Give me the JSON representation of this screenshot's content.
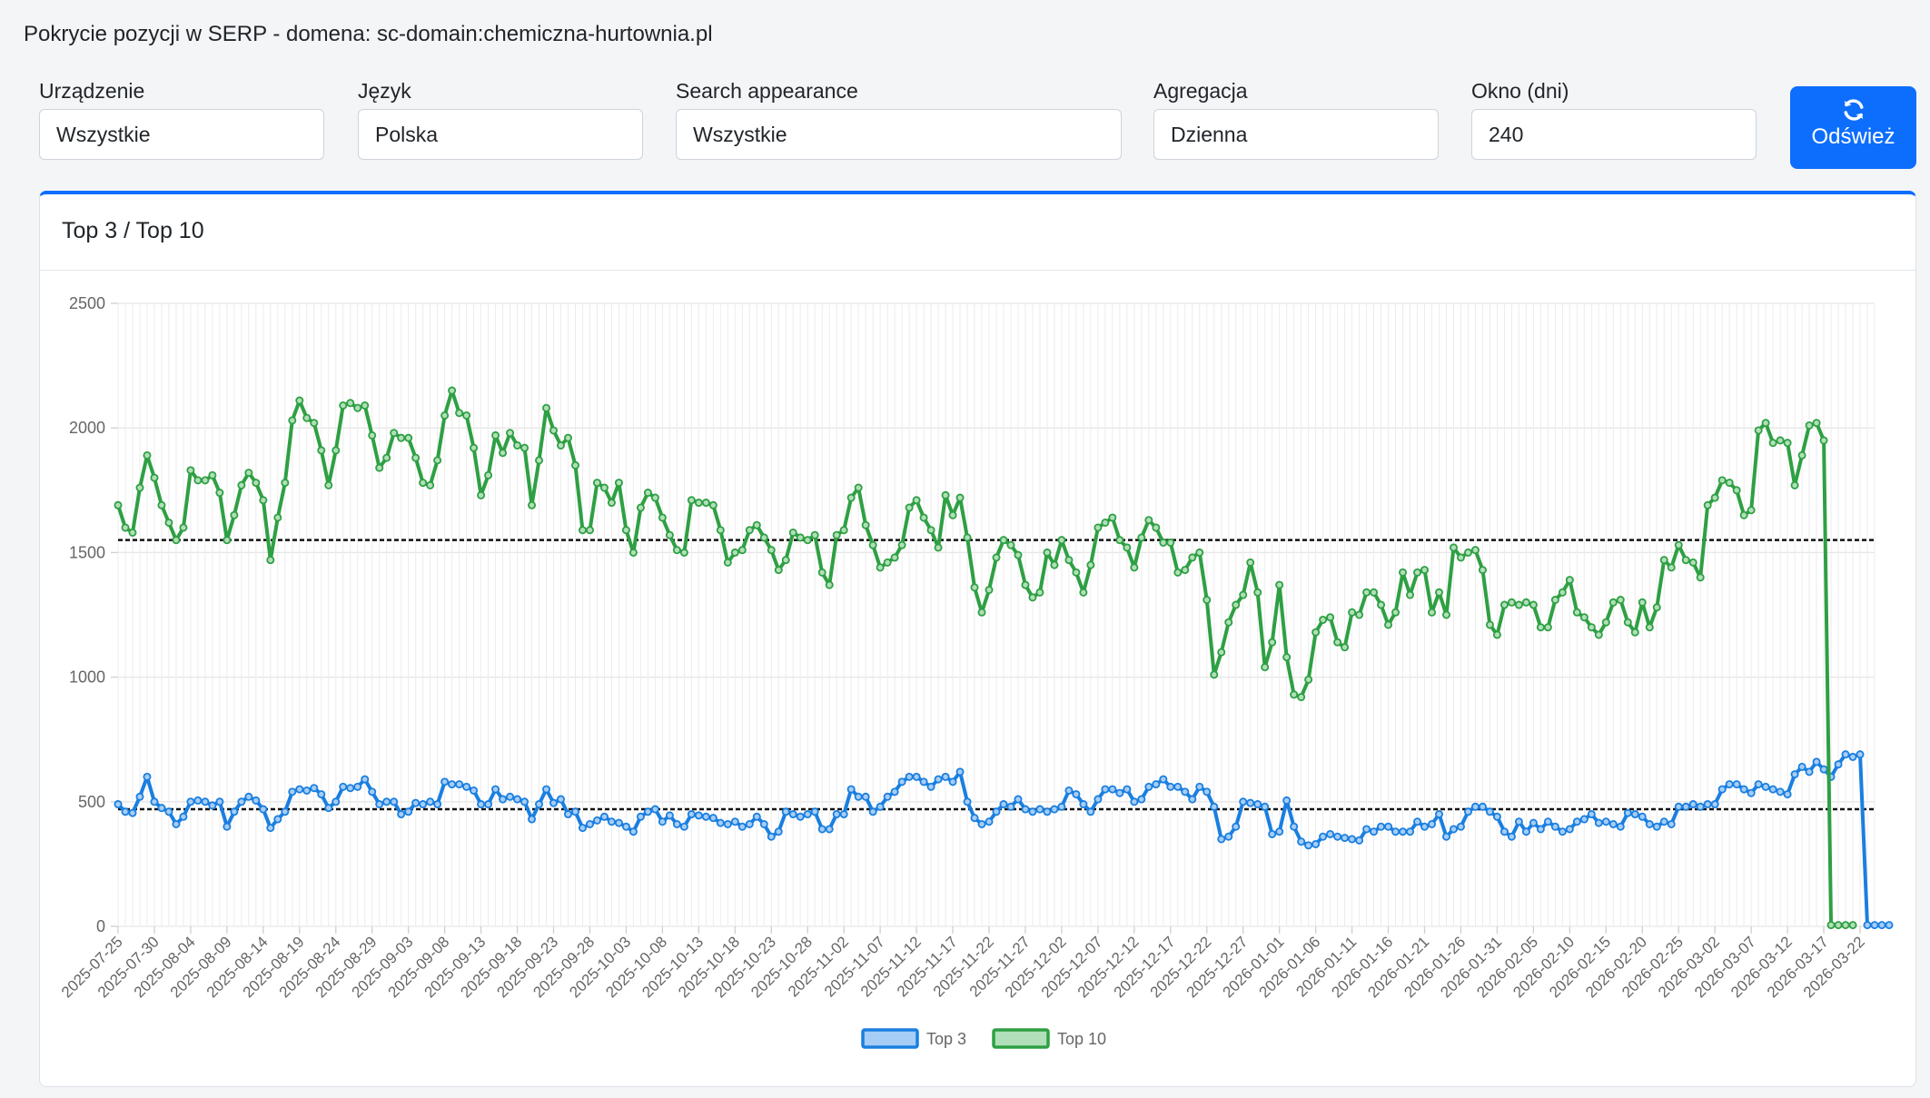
{
  "page_title": "Pokrycie pozycji w SERP - domena: sc-domain:chemiczna-hurtownia.pl",
  "filters": [
    {
      "label": "Urządzenie",
      "value": "Wszystkie"
    },
    {
      "label": "Język",
      "value": "Polska"
    },
    {
      "label": "Search appearance",
      "value": "Wszystkie"
    },
    {
      "label": "Agregacja",
      "value": "Dzienna"
    },
    {
      "label": "Okno (dni)",
      "value": "240"
    }
  ],
  "refresh_label": "Odśwież",
  "refresh_icon": "refresh-icon",
  "card_title": "Top 3 / Top 10",
  "chart_data": {
    "type": "line",
    "title": "",
    "xlabel": "",
    "ylabel": "",
    "ylim": [
      0,
      2500
    ],
    "yticks": [
      0,
      500,
      1000,
      1500,
      2000,
      2500
    ],
    "grid": true,
    "legend": "bottom",
    "x_start": "2025-07-25",
    "x_end": "2026-03-24",
    "x_tick_labels": [
      "2025-07-25",
      "2025-07-30",
      "2025-08-04",
      "2025-08-09",
      "2025-08-14",
      "2025-08-19",
      "2025-08-24",
      "2025-08-29",
      "2025-09-03",
      "2025-09-08",
      "2025-09-13",
      "2025-09-18",
      "2025-09-23",
      "2025-09-28",
      "2025-10-03",
      "2025-10-08",
      "2025-10-13",
      "2025-10-18",
      "2025-10-23",
      "2025-10-28",
      "2025-11-02",
      "2025-11-07",
      "2025-11-12",
      "2025-11-17",
      "2025-11-22",
      "2025-11-27",
      "2025-12-02",
      "2025-12-07",
      "2025-12-12",
      "2025-12-17",
      "2025-12-22",
      "2025-12-27",
      "2026-01-01",
      "2026-01-06",
      "2026-01-11",
      "2026-01-16",
      "2026-01-21",
      "2026-01-26",
      "2026-01-31",
      "2026-02-05",
      "2026-02-10",
      "2026-02-15",
      "2026-02-20",
      "2026-02-25",
      "2026-03-02",
      "2026-03-07",
      "2026-03-12",
      "2026-03-17",
      "2026-03-22"
    ],
    "series": [
      {
        "name": "Top 3",
        "color": "#1a7fe0",
        "fill": "#a6cdf5",
        "average": 470,
        "values": [
          490,
          460,
          455,
          520,
          600,
          500,
          475,
          460,
          410,
          440,
          500,
          505,
          500,
          485,
          500,
          400,
          460,
          500,
          520,
          505,
          470,
          395,
          430,
          460,
          540,
          550,
          545,
          555,
          530,
          475,
          500,
          560,
          555,
          560,
          590,
          540,
          490,
          500,
          500,
          450,
          460,
          495,
          490,
          500,
          490,
          580,
          570,
          570,
          560,
          545,
          490,
          490,
          550,
          510,
          520,
          510,
          500,
          430,
          490,
          550,
          495,
          510,
          450,
          460,
          395,
          410,
          425,
          440,
          420,
          415,
          400,
          380,
          440,
          460,
          470,
          420,
          445,
          410,
          400,
          450,
          445,
          440,
          435,
          415,
          410,
          420,
          400,
          410,
          440,
          410,
          360,
          380,
          460,
          450,
          440,
          450,
          460,
          390,
          390,
          450,
          450,
          550,
          520,
          520,
          460,
          480,
          520,
          540,
          580,
          600,
          600,
          580,
          560,
          590,
          600,
          580,
          620,
          500,
          435,
          410,
          420,
          460,
          490,
          480,
          510,
          470,
          460,
          470,
          460,
          470,
          480,
          545,
          530,
          490,
          460,
          510,
          550,
          550,
          535,
          550,
          500,
          510,
          560,
          570,
          590,
          560,
          560,
          540,
          510,
          560,
          540,
          480,
          350,
          360,
          400,
          500,
          495,
          490,
          480,
          370,
          380,
          505,
          400,
          340,
          325,
          330,
          360,
          370,
          360,
          355,
          350,
          345,
          390,
          380,
          400,
          400,
          380,
          380,
          380,
          420,
          400,
          410,
          450,
          360,
          390,
          400,
          460,
          480,
          480,
          460,
          440,
          380,
          360,
          420,
          380,
          415,
          390,
          420,
          400,
          380,
          390,
          420,
          430,
          450,
          415,
          420,
          410,
          400,
          455,
          450,
          440,
          410,
          400,
          420,
          410,
          480,
          480,
          490,
          480,
          490,
          490,
          550,
          570,
          570,
          550,
          535,
          570,
          560,
          550,
          540,
          530,
          610,
          640,
          620,
          660,
          630,
          600,
          650,
          690,
          680,
          690,
          5,
          5,
          5,
          5
        ]
      },
      {
        "name": "Top 10",
        "color": "#2ea043",
        "fill": "#b1dfb9",
        "average": 1550,
        "values": [
          1690,
          1600,
          1580,
          1760,
          1890,
          1800,
          1690,
          1620,
          1550,
          1600,
          1830,
          1790,
          1790,
          1810,
          1740,
          1550,
          1650,
          1770,
          1820,
          1780,
          1710,
          1470,
          1640,
          1780,
          2030,
          2110,
          2040,
          2020,
          1910,
          1770,
          1910,
          2090,
          2100,
          2080,
          2090,
          1970,
          1840,
          1880,
          1980,
          1960,
          1960,
          1880,
          1780,
          1770,
          1870,
          2050,
          2150,
          2060,
          2050,
          1920,
          1730,
          1810,
          1970,
          1900,
          1980,
          1930,
          1920,
          1690,
          1870,
          2080,
          1990,
          1930,
          1960,
          1850,
          1590,
          1590,
          1780,
          1760,
          1700,
          1780,
          1590,
          1500,
          1680,
          1740,
          1720,
          1640,
          1570,
          1510,
          1500,
          1710,
          1700,
          1700,
          1690,
          1590,
          1460,
          1500,
          1510,
          1590,
          1610,
          1560,
          1510,
          1430,
          1470,
          1580,
          1560,
          1550,
          1570,
          1420,
          1370,
          1570,
          1590,
          1720,
          1760,
          1610,
          1530,
          1440,
          1460,
          1480,
          1530,
          1680,
          1710,
          1640,
          1590,
          1520,
          1730,
          1650,
          1720,
          1560,
          1360,
          1260,
          1350,
          1480,
          1550,
          1530,
          1490,
          1370,
          1320,
          1340,
          1500,
          1450,
          1550,
          1470,
          1420,
          1340,
          1450,
          1600,
          1620,
          1640,
          1550,
          1520,
          1440,
          1560,
          1630,
          1600,
          1540,
          1540,
          1420,
          1430,
          1480,
          1500,
          1310,
          1010,
          1100,
          1220,
          1290,
          1330,
          1460,
          1340,
          1040,
          1140,
          1370,
          1080,
          930,
          920,
          990,
          1180,
          1230,
          1240,
          1140,
          1120,
          1260,
          1250,
          1340,
          1340,
          1290,
          1210,
          1260,
          1420,
          1330,
          1420,
          1430,
          1260,
          1340,
          1250,
          1520,
          1480,
          1500,
          1510,
          1430,
          1210,
          1170,
          1290,
          1300,
          1290,
          1300,
          1290,
          1200,
          1200,
          1310,
          1340,
          1390,
          1260,
          1240,
          1200,
          1170,
          1220,
          1300,
          1310,
          1220,
          1180,
          1300,
          1200,
          1280,
          1470,
          1440,
          1530,
          1470,
          1460,
          1400,
          1690,
          1720,
          1790,
          1780,
          1750,
          1650,
          1670,
          1990,
          2020,
          1940,
          1950,
          1940,
          1770,
          1890,
          2010,
          2020,
          1950,
          5,
          5,
          5,
          5
        ]
      }
    ]
  }
}
